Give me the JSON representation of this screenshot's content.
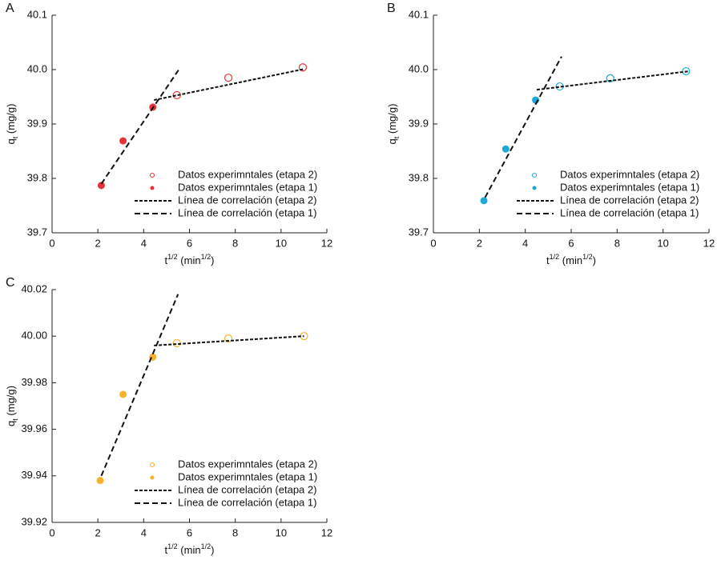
{
  "chart_data": [
    {
      "type": "scatter",
      "panel": "A",
      "xlabel": [
        "t",
        "1/2",
        " (min",
        "1/2",
        ")"
      ],
      "ylabel": [
        "q",
        "t",
        " (mg/g)"
      ],
      "xlim": [
        0,
        12
      ],
      "xticks": [
        0,
        2,
        4,
        6,
        8,
        10,
        12
      ],
      "ylim": [
        39.7,
        40.1
      ],
      "yticks": [
        39.7,
        39.8,
        39.9,
        {
          "value": 40,
          "label": "40.0"
        },
        40.1
      ],
      "legend": "lower right",
      "series": [
        {
          "name": "Datos experimntales (etapa 2)",
          "color": "#e8323a",
          "marker": "open",
          "x": [
            5.45,
            7.7,
            10.95
          ],
          "values": [
            39.953,
            39.985,
            40.004
          ]
        },
        {
          "name": "Datos experimntales (etapa 1)",
          "color": "#e8323a",
          "marker": "filled",
          "x": [
            2.15,
            3.1,
            4.4
          ],
          "values": [
            39.787,
            39.869,
            39.931
          ]
        },
        {
          "name": "Línea de correlación (etapa 2)",
          "color": "#111111",
          "linestyle": "dotted",
          "x": [
            4.45,
            11.0
          ],
          "values": [
            39.944,
            40.001
          ]
        },
        {
          "name": "Línea de correlación (etapa 1)",
          "color": "#111111",
          "linestyle": "dashed",
          "x": [
            2.15,
            5.52
          ],
          "values": [
            39.79,
            39.999
          ]
        }
      ]
    },
    {
      "type": "scatter",
      "panel": "B",
      "xlabel": [
        "t",
        "1/2",
        " (min",
        "1/2",
        ")"
      ],
      "ylabel": [
        "q",
        "t",
        " (mg/g)"
      ],
      "xlim": [
        0,
        12
      ],
      "xticks": [
        0,
        2,
        4,
        6,
        8,
        10,
        12
      ],
      "ylim": [
        39.7,
        40.1
      ],
      "yticks": [
        39.7,
        39.8,
        39.9,
        {
          "value": 40,
          "label": "40.0"
        },
        40.1
      ],
      "legend": "lower right",
      "series": [
        {
          "name": "Datos experimntales (etapa 2)",
          "color": "#1ba8d8",
          "marker": "open",
          "x": [
            5.5,
            7.7,
            11.0
          ],
          "values": [
            39.969,
            39.984,
            39.997
          ]
        },
        {
          "name": "Datos experimntales (etapa 1)",
          "color": "#1ba8d8",
          "marker": "filled",
          "x": [
            2.2,
            3.15,
            4.45
          ],
          "values": [
            39.759,
            39.854,
            39.944
          ]
        },
        {
          "name": "Línea de correlación (etapa 2)",
          "color": "#111111",
          "linestyle": "dotted",
          "x": [
            4.5,
            11.13
          ],
          "values": [
            39.963,
            39.997
          ]
        },
        {
          "name": "Línea de correlación (etapa 1)",
          "color": "#111111",
          "linestyle": "dashed",
          "x": [
            2.25,
            5.58
          ],
          "values": [
            39.765,
            40.024
          ]
        }
      ]
    },
    {
      "type": "scatter",
      "panel": "C",
      "xlabel": [
        "t",
        "1/2",
        " (min",
        "1/2",
        ")"
      ],
      "ylabel": [
        "q",
        "t",
        " (mg/g)"
      ],
      "xlim": [
        0,
        12
      ],
      "xticks": [
        0,
        2,
        4,
        6,
        8,
        10,
        12
      ],
      "ylim": [
        39.92,
        40.02
      ],
      "yticks": [
        39.92,
        39.94,
        39.96,
        39.98,
        {
          "value": 40,
          "label": "40.00"
        },
        40.02
      ],
      "legend": "lower right",
      "series": [
        {
          "name": "Datos experimntales (etapa 2)",
          "color": "#f7b22a",
          "marker": "open",
          "x": [
            5.45,
            7.7,
            11.0
          ],
          "values": [
            39.997,
            39.999,
            40.0
          ]
        },
        {
          "name": "Datos experimntales (etapa 1)",
          "color": "#f7b22a",
          "marker": "filled",
          "x": [
            2.1,
            3.1,
            4.4
          ],
          "values": [
            39.938,
            39.975,
            39.991
          ]
        },
        {
          "name": "Línea de correlación (etapa 2)",
          "color": "#111111",
          "linestyle": "dotted",
          "x": [
            4.45,
            11.0
          ],
          "values": [
            39.996,
            40.0
          ]
        },
        {
          "name": "Línea de correlación (etapa 1)",
          "color": "#111111",
          "linestyle": "dashed",
          "x": [
            2.15,
            5.5
          ],
          "values": [
            39.94,
            40.018
          ]
        }
      ]
    }
  ]
}
